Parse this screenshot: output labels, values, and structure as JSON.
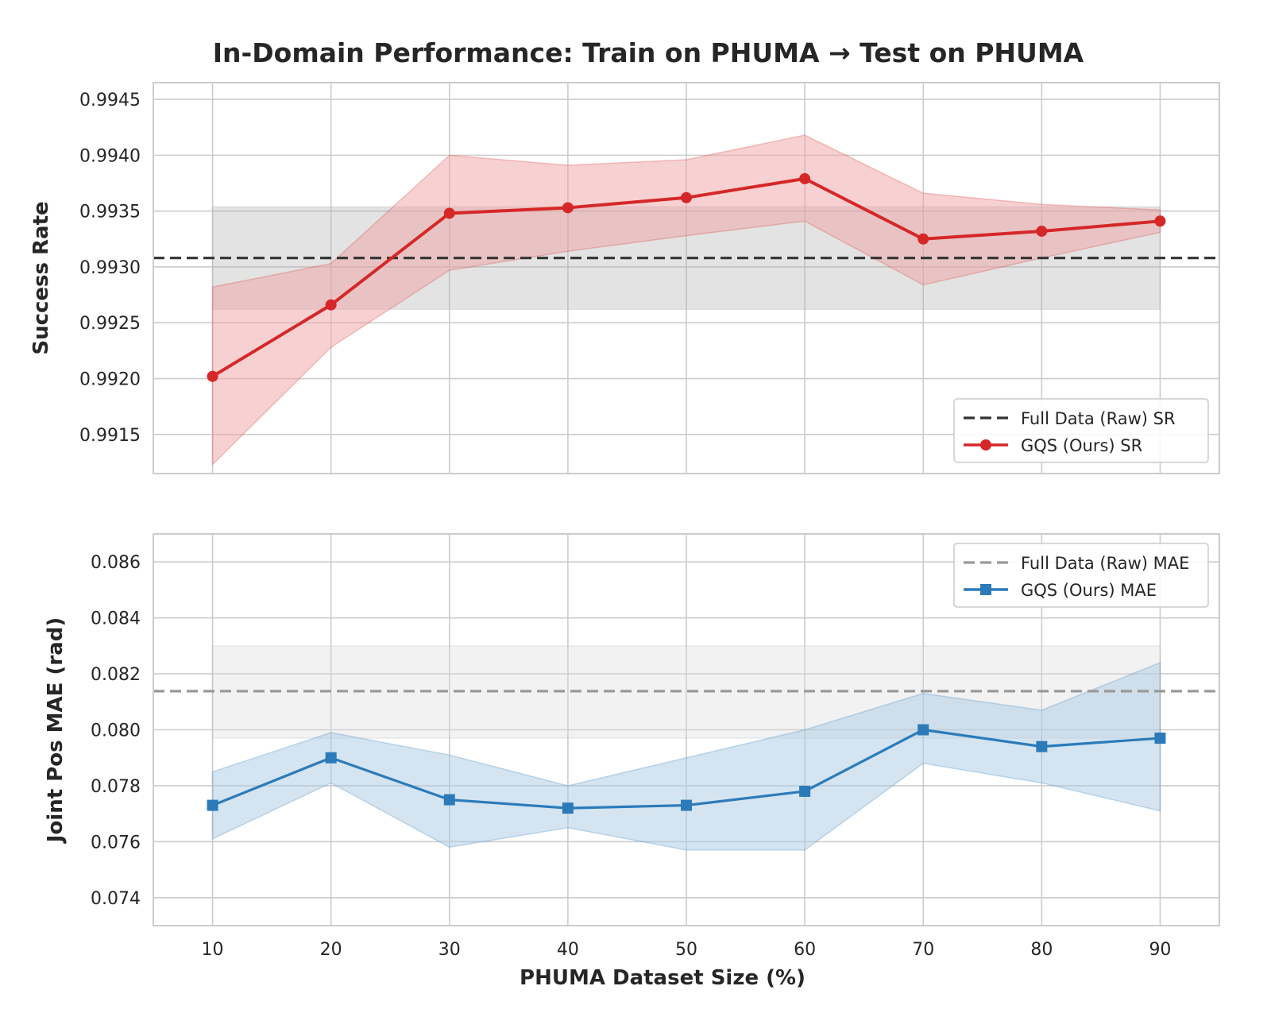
{
  "figure_title": "In-Domain Performance: Train on PHUMA → Test on PHUMA",
  "chart_data": [
    {
      "type": "line",
      "panel": "top",
      "xlabel": "",
      "ylabel": "Success Rate",
      "x": [
        10,
        20,
        30,
        40,
        50,
        60,
        70,
        80,
        90
      ],
      "xlim": [
        5,
        95
      ],
      "ylim": [
        0.99115,
        0.99465
      ],
      "yticks": [
        0.9915,
        0.992,
        0.9925,
        0.993,
        0.9935,
        0.994,
        0.9945
      ],
      "ytick_labels": [
        "0.9915",
        "0.9920",
        "0.9925",
        "0.9930",
        "0.9935",
        "0.9940",
        "0.9945"
      ],
      "grid": true,
      "legend_position": "lower-right",
      "baseline": {
        "name": "Full Data (Raw) SR",
        "value": 0.99308,
        "band": [
          0.99262,
          0.99354
        ],
        "band_x": [
          10,
          90
        ],
        "color": "#333333",
        "band_color": "#b0b0b0",
        "style": "dashed"
      },
      "series": [
        {
          "name": "GQS (Ours) SR",
          "values": [
            0.99202,
            0.99266,
            0.99348,
            0.99353,
            0.99362,
            0.99379,
            0.99325,
            0.99332,
            0.99341
          ],
          "lower": [
            0.99123,
            0.99228,
            0.99297,
            0.99314,
            0.99328,
            0.99341,
            0.99284,
            0.99308,
            0.99331
          ],
          "upper": [
            0.99282,
            0.99303,
            0.994,
            0.99391,
            0.99396,
            0.99418,
            0.99366,
            0.99356,
            0.99351
          ],
          "color": "#d62728",
          "band_color": "#f0a3a4",
          "marker": "circle"
        }
      ]
    },
    {
      "type": "line",
      "panel": "bottom",
      "xlabel": "PHUMA Dataset Size (%)",
      "ylabel": "Joint Pos MAE (rad)",
      "x": [
        10,
        20,
        30,
        40,
        50,
        60,
        70,
        80,
        90
      ],
      "xlim": [
        5,
        95
      ],
      "ylim": [
        0.073,
        0.087
      ],
      "xticks": [
        10,
        20,
        30,
        40,
        50,
        60,
        70,
        80,
        90
      ],
      "xtick_labels": [
        "10",
        "20",
        "30",
        "40",
        "50",
        "60",
        "70",
        "80",
        "90"
      ],
      "yticks": [
        0.074,
        0.076,
        0.078,
        0.08,
        0.082,
        0.084,
        0.086
      ],
      "ytick_labels": [
        "0.074",
        "0.076",
        "0.078",
        "0.080",
        "0.082",
        "0.084",
        "0.086"
      ],
      "grid": true,
      "legend_position": "upper-right",
      "baseline": {
        "name": "Full Data (Raw) MAE",
        "value": 0.08138,
        "band": [
          0.0797,
          0.083
        ],
        "band_x": [
          10,
          90
        ],
        "color": "#999999",
        "band_color": "#dadada",
        "style": "dashed"
      },
      "series": [
        {
          "name": "GQS (Ours) MAE",
          "values": [
            0.0773,
            0.079,
            0.0775,
            0.0772,
            0.0773,
            0.0778,
            0.08,
            0.0794,
            0.0797
          ],
          "lower": [
            0.0761,
            0.0781,
            0.0758,
            0.0765,
            0.0757,
            0.0757,
            0.0788,
            0.0781,
            0.0771
          ],
          "upper": [
            0.0785,
            0.0799,
            0.0791,
            0.078,
            0.079,
            0.08,
            0.0813,
            0.0807,
            0.0824
          ],
          "color": "#2b7bba",
          "band_color": "#a9c9e2",
          "marker": "square"
        }
      ]
    }
  ]
}
